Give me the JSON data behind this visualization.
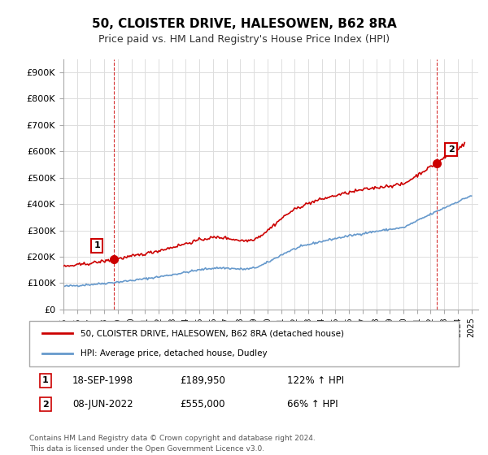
{
  "title": "50, CLOISTER DRIVE, HALESOWEN, B62 8RA",
  "subtitle": "Price paid vs. HM Land Registry's House Price Index (HPI)",
  "ylabel_ticks": [
    "£0",
    "£100K",
    "£200K",
    "£300K",
    "£400K",
    "£500K",
    "£600K",
    "£700K",
    "£800K",
    "£900K"
  ],
  "ytick_values": [
    0,
    100000,
    200000,
    300000,
    400000,
    500000,
    600000,
    700000,
    800000,
    900000
  ],
  "ylim": [
    0,
    950000
  ],
  "xlim_start": 1995.0,
  "xlim_end": 2025.5,
  "purchase1": {
    "date": "18-SEP-1998",
    "year": 1998.72,
    "price": 189950,
    "label": "1"
  },
  "purchase2": {
    "date": "08-JUN-2022",
    "year": 2022.44,
    "price": 555000,
    "label": "2"
  },
  "legend_property": "50, CLOISTER DRIVE, HALESOWEN, B62 8RA (detached house)",
  "legend_hpi": "HPI: Average price, detached house, Dudley",
  "footnote1": "Contains HM Land Registry data © Crown copyright and database right 2024.",
  "footnote2": "This data is licensed under the Open Government Licence v3.0.",
  "table_rows": [
    {
      "num": "1",
      "date": "18-SEP-1998",
      "price": "£189,950",
      "hpi": "122% ↑ HPI"
    },
    {
      "num": "2",
      "date": "08-JUN-2022",
      "price": "£555,000",
      "hpi": "66% ↑ HPI"
    }
  ],
  "property_color": "#cc0000",
  "hpi_color": "#6699cc",
  "vline_color": "#cc0000",
  "grid_color": "#dddddd",
  "background_color": "#ffffff"
}
